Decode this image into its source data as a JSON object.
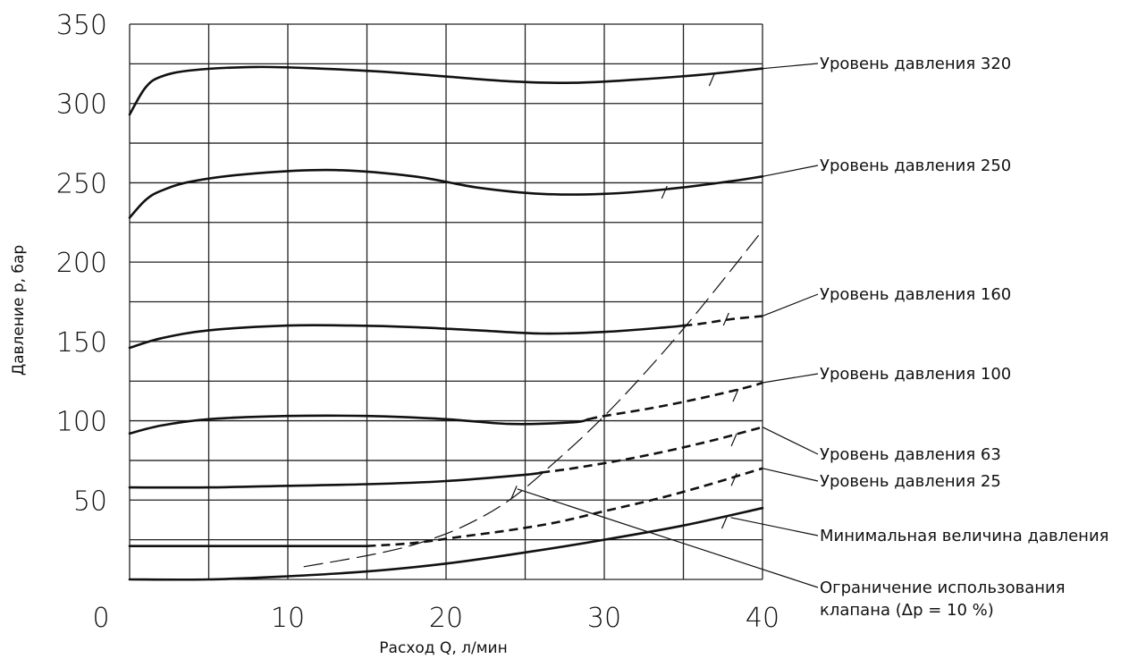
{
  "chart_data": {
    "type": "line",
    "title": "",
    "xlabel": "Расход Q, л/мин",
    "ylabel": "Давление p, бар",
    "xlim": [
      0,
      40
    ],
    "ylim": [
      0,
      350
    ],
    "xticks": [
      0,
      10,
      20,
      30,
      40
    ],
    "yticks": [
      50,
      100,
      150,
      200,
      250,
      300,
      350
    ],
    "grid": true,
    "series": [
      {
        "name": "Уровень давления 320",
        "points": [
          [
            0,
            293
          ],
          [
            1,
            310
          ],
          [
            2,
            317
          ],
          [
            4,
            321
          ],
          [
            8,
            323
          ],
          [
            12,
            322
          ],
          [
            16,
            320
          ],
          [
            20,
            317
          ],
          [
            24,
            314
          ],
          [
            28,
            313
          ],
          [
            32,
            315
          ],
          [
            36,
            318
          ],
          [
            40,
            322
          ]
        ],
        "dashed_from": null,
        "label_anchor": [
          40,
          322
        ],
        "tick_mark": [
          36.8,
          315
        ]
      },
      {
        "name": "Уровень давления 250",
        "points": [
          [
            0,
            228
          ],
          [
            1,
            239
          ],
          [
            2,
            245
          ],
          [
            4,
            251
          ],
          [
            8,
            256
          ],
          [
            13,
            258
          ],
          [
            18,
            254
          ],
          [
            22,
            247
          ],
          [
            26,
            243
          ],
          [
            30,
            243
          ],
          [
            34,
            246
          ],
          [
            38,
            251
          ],
          [
            40,
            254
          ]
        ],
        "dashed_from": null,
        "label_anchor": [
          40,
          254
        ],
        "tick_mark": [
          33.8,
          244
        ]
      },
      {
        "name": "Уровень давления 160",
        "points": [
          [
            0,
            146
          ],
          [
            2,
            152
          ],
          [
            5,
            157
          ],
          [
            10,
            160
          ],
          [
            14,
            160
          ],
          [
            18,
            159
          ],
          [
            22,
            157
          ],
          [
            26,
            155
          ],
          [
            30,
            156
          ],
          [
            34,
            159
          ],
          [
            36,
            161
          ],
          [
            38,
            164
          ],
          [
            40,
            166
          ]
        ],
        "dashed_from": 35,
        "label_anchor": [
          40,
          166
        ],
        "tick_mark": [
          37.7,
          164
        ]
      },
      {
        "name": "Уровень давления 100",
        "points": [
          [
            0,
            92
          ],
          [
            2,
            97
          ],
          [
            5,
            101
          ],
          [
            10,
            103
          ],
          [
            15,
            103
          ],
          [
            20,
            101
          ],
          [
            24,
            98
          ],
          [
            28,
            99
          ],
          [
            30,
            103
          ],
          [
            33,
            108
          ],
          [
            36,
            114
          ],
          [
            39,
            121
          ],
          [
            40,
            124
          ]
        ],
        "dashed_from": 29,
        "label_anchor": [
          40,
          124
        ],
        "tick_mark": [
          38.3,
          116
        ]
      },
      {
        "name": "Уровень давления 63",
        "points": [
          [
            0,
            58
          ],
          [
            5,
            58
          ],
          [
            10,
            59
          ],
          [
            15,
            60
          ],
          [
            20,
            62
          ],
          [
            25,
            66
          ],
          [
            28,
            70
          ],
          [
            31,
            75
          ],
          [
            34,
            81
          ],
          [
            37,
            88
          ],
          [
            40,
            96
          ]
        ],
        "dashed_from": 26,
        "label_anchor": [
          40,
          96
        ],
        "tick_mark": [
          38.2,
          88
        ]
      },
      {
        "name": "Уровень давления 25",
        "points": [
          [
            0,
            21
          ],
          [
            5,
            21
          ],
          [
            10,
            21
          ],
          [
            15,
            21
          ],
          [
            18,
            23
          ],
          [
            21,
            27
          ],
          [
            24,
            31
          ],
          [
            27,
            36
          ],
          [
            30,
            43
          ],
          [
            33,
            50
          ],
          [
            36,
            58
          ],
          [
            40,
            70
          ]
        ],
        "dashed_from": 15,
        "label_anchor": [
          40,
          70
        ],
        "tick_mark": [
          38.2,
          63
        ]
      },
      {
        "name": "Минимальная величина давления",
        "points": [
          [
            0,
            0
          ],
          [
            5,
            0
          ],
          [
            10,
            2
          ],
          [
            15,
            5
          ],
          [
            20,
            10
          ],
          [
            25,
            17
          ],
          [
            30,
            25
          ],
          [
            35,
            34
          ],
          [
            40,
            45
          ]
        ],
        "dashed_from": null,
        "label_anchor": [
          38,
          39
        ],
        "tick_mark": [
          37.6,
          36
        ]
      }
    ],
    "limit_curve": {
      "name": "Ограничение использования клапана (Δp = 10 %)",
      "points": [
        [
          11,
          8
        ],
        [
          15,
          15
        ],
        [
          18,
          22
        ],
        [
          21,
          33
        ],
        [
          24,
          50
        ],
        [
          27,
          75
        ],
        [
          30,
          103
        ],
        [
          33,
          135
        ],
        [
          36,
          170
        ],
        [
          40,
          220
        ]
      ],
      "label_anchor": [
        24.5,
        57
      ],
      "tick_mark": [
        24.3,
        55
      ]
    },
    "callouts": [
      {
        "lines": [
          "Уровень давления 320"
        ]
      },
      {
        "lines": [
          "Уровень давления 250"
        ]
      },
      {
        "lines": [
          "Уровень давления 160"
        ]
      },
      {
        "lines": [
          "Уровень давления 100"
        ]
      },
      {
        "lines": [
          "Уровень давления 63"
        ]
      },
      {
        "lines": [
          "Уровень давления 25"
        ]
      },
      {
        "lines": [
          "Минимальная величина давления"
        ]
      },
      {
        "lines": [
          "Ограничение использования",
          "клапана (Δp = 10 %)"
        ]
      }
    ]
  }
}
